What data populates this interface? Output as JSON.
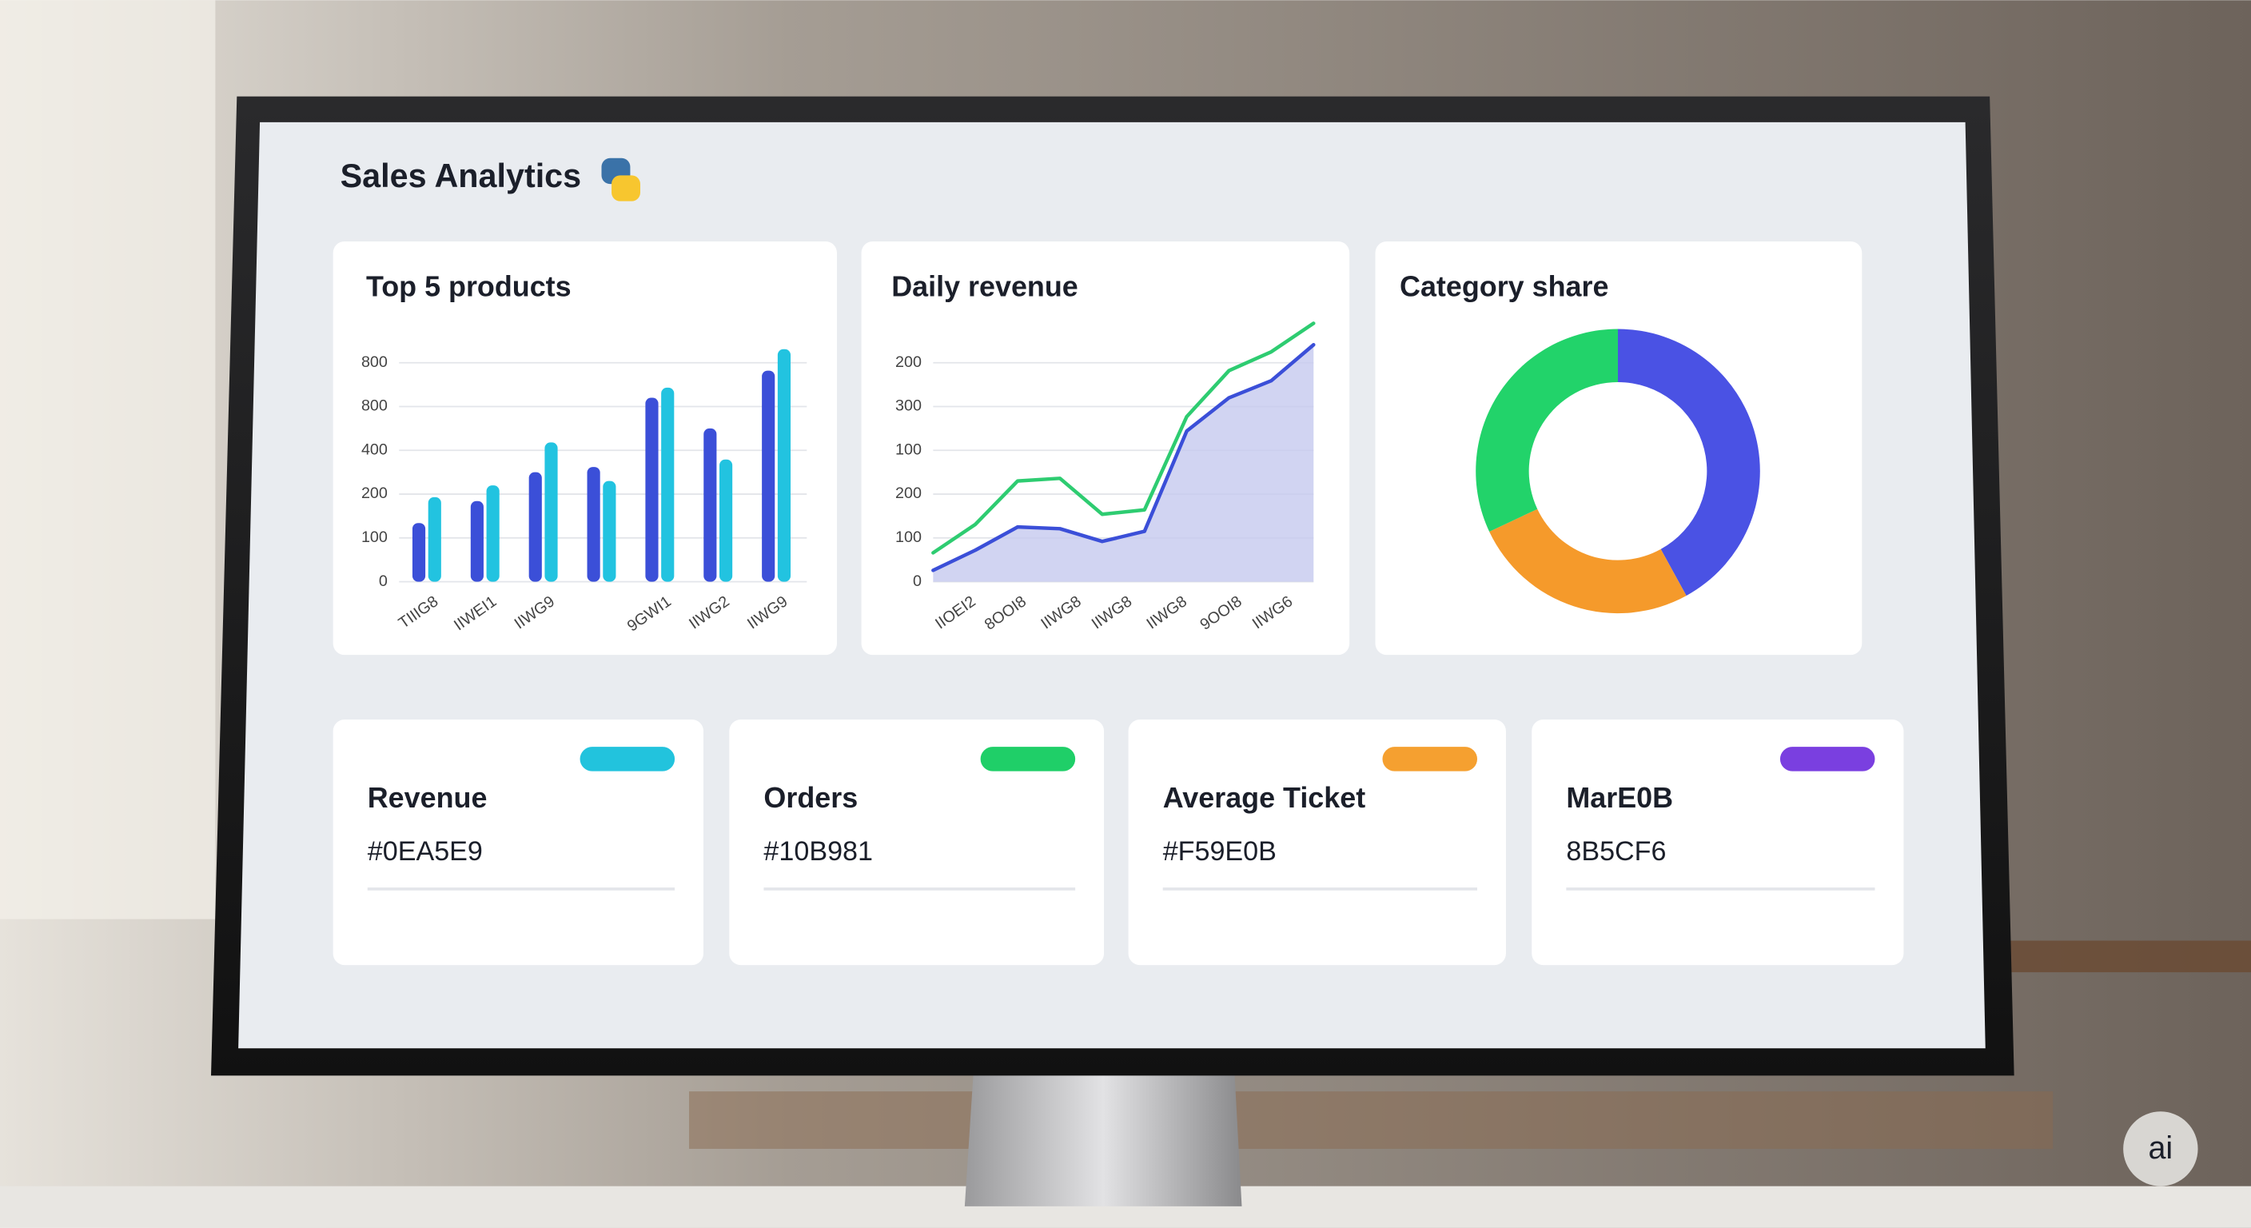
{
  "header": {
    "title": "Sales Analytics"
  },
  "chart_data": [
    {
      "type": "bar",
      "title": "Top 5 products",
      "categories": [
        "TIIIG8",
        "IIWEI1",
        "IIWG9",
        null,
        "9GWI1",
        "IIWG2",
        "IIWG9"
      ],
      "series": [
        {
          "color": "#3b4fd8",
          "values": [
            1.34,
            1.84,
            2.5,
            2.62,
            4.2,
            3.5,
            4.82
          ]
        },
        {
          "color": "#22c3e0",
          "values": [
            1.93,
            2.2,
            3.18,
            2.3,
            4.43,
            2.79,
            5.31
          ]
        }
      ],
      "ylim": [
        0,
        5.5
      ],
      "yticks": [
        0,
        {
          "value": 1,
          "label": "100"
        },
        {
          "value": 2,
          "label": "200"
        },
        {
          "value": 3,
          "label": "400"
        },
        {
          "value": 4,
          "label": "800"
        },
        {
          "value": 5,
          "label": "800"
        }
      ],
      "grid": true
    },
    {
      "type": "line",
      "title": "Daily revenue",
      "x": [
        0,
        1,
        2,
        3,
        4,
        5,
        6,
        7,
        8,
        9
      ],
      "xlim": [
        0,
        9
      ],
      "xticks": [
        {
          "value": 0.7,
          "label": "IIOEI2"
        },
        {
          "value": 1.9,
          "label": "8OOI8"
        },
        {
          "value": 3.2,
          "label": "IIWG8"
        },
        {
          "value": 4.4,
          "label": "IIWG8"
        },
        {
          "value": 5.7,
          "label": "IIWG8"
        },
        {
          "value": 7,
          "label": "9OOI8"
        },
        {
          "value": 8.2,
          "label": "IIWG6"
        }
      ],
      "series": [
        {
          "color": "#2ecc71",
          "values": [
            0.66,
            1.31,
            2.3,
            2.36,
            1.54,
            1.64,
            3.77,
            4.82,
            5.25,
            5.9
          ]
        },
        {
          "color": "#3b4fd8",
          "area": "#c5c9ef",
          "values": [
            0.26,
            0.72,
            1.25,
            1.21,
            0.92,
            1.15,
            3.44,
            4.2,
            4.59,
            5.41
          ]
        }
      ],
      "ylim": [
        0,
        6
      ],
      "yticks": [
        0,
        {
          "value": 1,
          "label": "100"
        },
        {
          "value": 2,
          "label": "200"
        },
        {
          "value": 3,
          "label": "100"
        },
        {
          "value": 4,
          "label": "300"
        },
        {
          "value": 5,
          "label": "200"
        }
      ],
      "grid": true
    },
    {
      "type": "pie",
      "title": "Category share",
      "donut": true,
      "values": [
        42,
        26,
        32
      ],
      "colors": [
        "#4a52e4",
        "#f59a2b",
        "#22d36a"
      ]
    }
  ],
  "kpis": [
    {
      "title": "Revenue",
      "value": "#0EA5E9",
      "color": "#22c3dd"
    },
    {
      "title": "Orders",
      "value": "#10B981",
      "color": "#1fcf68"
    },
    {
      "title": "Average Ticket",
      "value": "#F59E0B",
      "color": "#f5a030"
    },
    {
      "title": "MarE0B",
      "value": "8B5CF6",
      "color": "#7a3fe0"
    }
  ],
  "badge": "ai"
}
